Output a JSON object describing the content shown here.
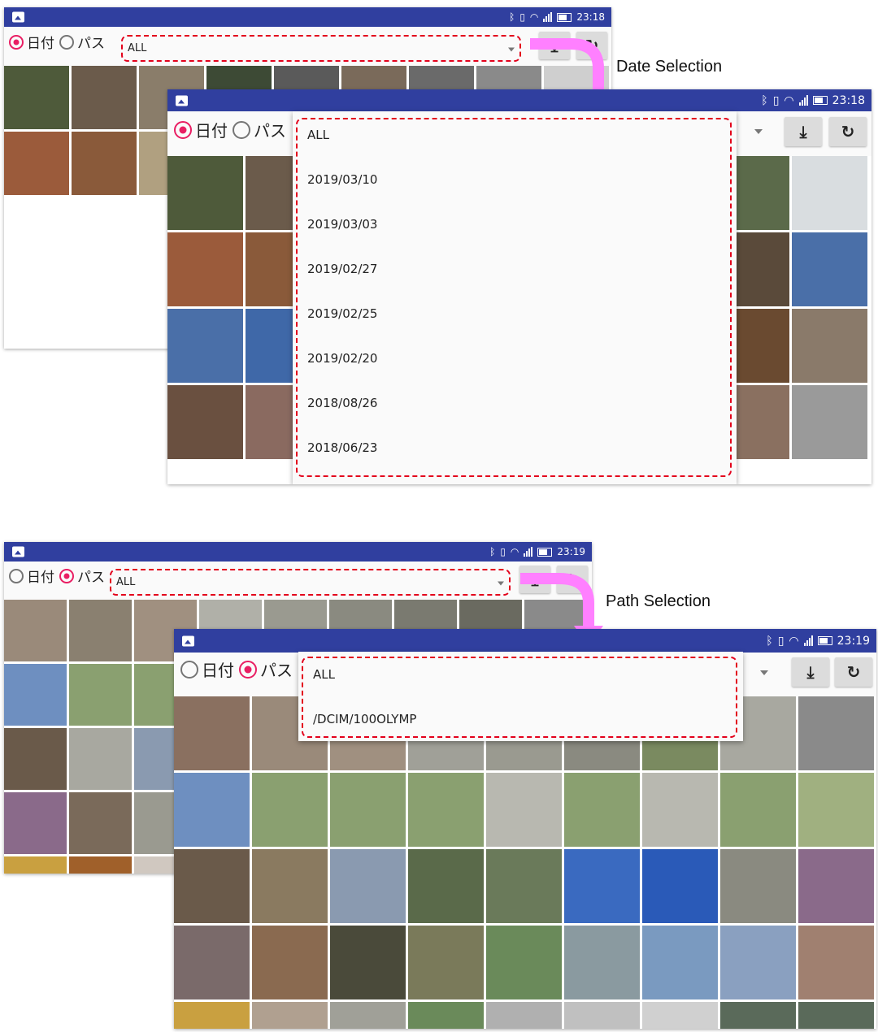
{
  "app": {
    "radio_date": "日付",
    "radio_path": "パス",
    "spinner_value": "ALL"
  },
  "date_demo": {
    "time_back": "23:18",
    "time_front": "23:18",
    "selected_mode": "date",
    "caption": "Date Selection",
    "dropdown_items": [
      "ALL",
      "2019/03/10",
      "2019/03/03",
      "2019/02/27",
      "2019/02/25",
      "2019/02/20",
      "2018/08/26",
      "2018/06/23"
    ]
  },
  "path_demo": {
    "time_back": "23:19",
    "time_front": "23:19",
    "selected_mode": "path",
    "caption": "Path Selection",
    "dropdown_items": [
      "ALL",
      "/DCIM/100OLYMP"
    ]
  },
  "icons": {
    "download": "download-icon",
    "refresh": "refresh-icon",
    "gallery": "image-icon",
    "bluetooth": "bluetooth-icon",
    "vibrate": "vibrate-icon",
    "wifi": "wifi-icon",
    "signal": "signal-icon",
    "battery": "battery-icon"
  },
  "colors": {
    "status_bar": "#303f9f",
    "radio_accent": "#e91e63",
    "highlight": "#e3001b",
    "arrow": "#ff80ff"
  }
}
